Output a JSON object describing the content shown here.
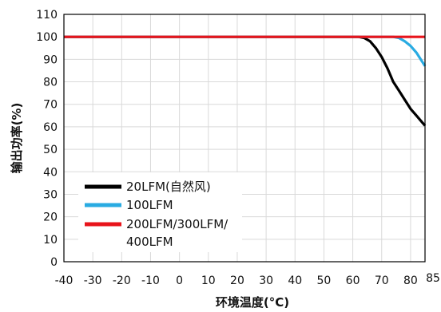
{
  "chart_data": {
    "type": "line",
    "xlabel": "环境温度(°C)",
    "ylabel": "输出功率(%)",
    "xlim": [
      -40,
      85
    ],
    "ylim": [
      0,
      110
    ],
    "xticks": [
      -40,
      -30,
      -20,
      -10,
      0,
      10,
      20,
      30,
      40,
      50,
      60,
      70,
      80,
      85
    ],
    "yticks": [
      0,
      10,
      20,
      30,
      40,
      50,
      60,
      70,
      80,
      90,
      100,
      110
    ],
    "grid": true,
    "legend_position": "bottom-left",
    "series": [
      {
        "name": "20LFM(自然风)",
        "color": "#000000",
        "points": [
          [
            -40,
            100
          ],
          [
            60,
            100
          ],
          [
            62,
            100
          ],
          [
            64,
            99.5
          ],
          [
            66,
            98
          ],
          [
            68,
            95
          ],
          [
            70,
            91
          ],
          [
            72,
            86
          ],
          [
            74,
            80
          ],
          [
            76,
            76
          ],
          [
            78,
            72
          ],
          [
            80,
            68
          ],
          [
            82,
            65
          ],
          [
            84,
            62
          ],
          [
            85,
            60.5
          ]
        ]
      },
      {
        "name": "100LFM",
        "color": "#29abe2",
        "points": [
          [
            -40,
            100
          ],
          [
            72,
            100
          ],
          [
            74,
            100
          ],
          [
            76,
            99.5
          ],
          [
            78,
            98
          ],
          [
            80,
            96
          ],
          [
            82,
            93
          ],
          [
            84,
            89
          ],
          [
            85,
            87
          ]
        ]
      },
      {
        "name": "200LFM/300LFM/400LFM",
        "legend_lines": [
          "200LFM/300LFM/",
          "400LFM"
        ],
        "color": "#e8141b",
        "points": [
          [
            -40,
            100
          ],
          [
            85,
            100
          ]
        ]
      }
    ]
  }
}
